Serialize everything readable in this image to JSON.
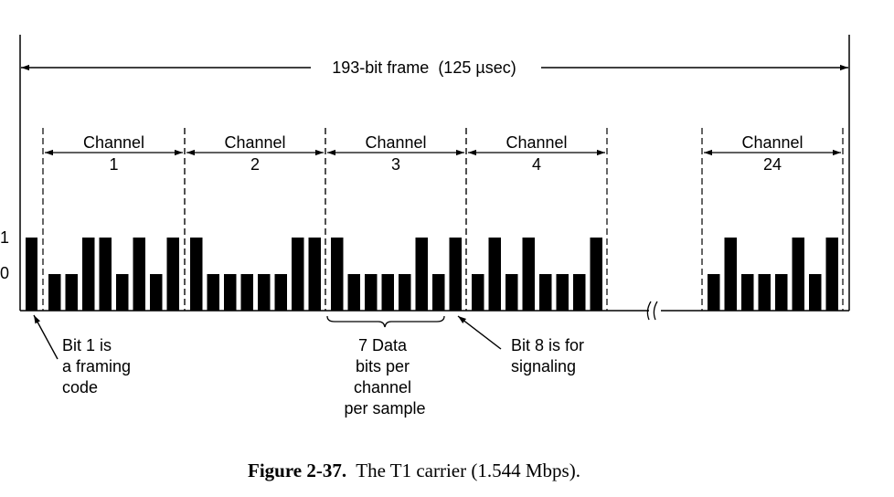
{
  "frame_label": "193-bit frame  (125 µsec)",
  "levels": {
    "high": "1",
    "low": "0"
  },
  "channels": [
    {
      "word": "Channel",
      "number": "1",
      "bits": [
        0,
        0,
        1,
        1,
        0,
        1,
        0,
        1
      ]
    },
    {
      "word": "Channel",
      "number": "2",
      "bits": [
        1,
        0,
        0,
        0,
        0,
        0,
        1,
        1
      ]
    },
    {
      "word": "Channel",
      "number": "3",
      "bits": [
        1,
        0,
        0,
        0,
        0,
        1,
        0,
        1
      ]
    },
    {
      "word": "Channel",
      "number": "4",
      "bits": [
        0,
        1,
        0,
        1,
        0,
        0,
        0,
        1
      ]
    },
    {
      "word": "Channel",
      "number": "24",
      "bits": [
        0,
        1,
        0,
        0,
        0,
        1,
        0,
        1
      ]
    }
  ],
  "framing_bit": 1,
  "annotations": {
    "framing": [
      "Bit 1 is",
      "a framing",
      "code"
    ],
    "data_bits": [
      "7 Data",
      "bits per",
      "channel",
      "per sample"
    ],
    "signaling": [
      "Bit 8 is for",
      "signaling"
    ]
  },
  "caption": {
    "label": "Figure 2-37.",
    "text": "The T1 carrier (1.544 Mbps)."
  }
}
